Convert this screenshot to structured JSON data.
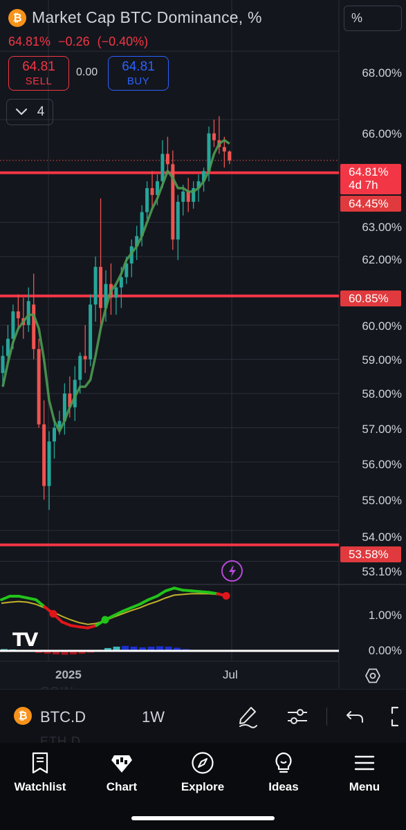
{
  "header": {
    "coin_glyph": "₿",
    "title": "Market Cap BTC Dominance, %",
    "last": "64.81%",
    "change": "−0.26",
    "change_pct": "(−0.40%)",
    "unit_box": "%"
  },
  "trade": {
    "sell_price": "64.81",
    "sell_label": "SELL",
    "spread": "0.00",
    "buy_price": "64.81",
    "buy_label": "BUY"
  },
  "indicators_toggle": {
    "count": "4"
  },
  "price_axis": {
    "labels": [
      "68.00%",
      "66.00%",
      "63.00%",
      "62.00%",
      "60.00%",
      "59.00%",
      "58.00%",
      "57.00%",
      "56.00%",
      "55.00%",
      "54.00%",
      "53.10%"
    ],
    "current_price": "64.81%",
    "countdown": "4d 7h",
    "line_tags": [
      "64.45%",
      "60.85%",
      "53.58%"
    ]
  },
  "indicator_axis": {
    "labels": [
      "1.00%",
      "0.00%"
    ]
  },
  "time_axis": {
    "labels": [
      "2025",
      "Jul"
    ]
  },
  "colors": {
    "up": "#26a69a",
    "down": "#ef5350",
    "ma_line": "#4c9a52",
    "horizontal_line": "#f23645",
    "sell": "#f23645",
    "buy": "#2962ff",
    "indicator_fast": "#22c41a",
    "indicator_slow": "#c2b32b"
  },
  "icons": {
    "lightning": "lightning-icon",
    "settings": "hexagon-settings-icon",
    "draw": "pen-icon",
    "indicators": "sliders-icon",
    "undo": "undo-icon",
    "fullscreen": "fullscreen-icon"
  },
  "toolbar": {
    "symbol": "BTC.D",
    "interval": "1W",
    "ghost_above": "COIN",
    "ghost_below": "ETH.D"
  },
  "nav": {
    "items": [
      {
        "label": "Watchlist",
        "icon": "bookmark-list-icon"
      },
      {
        "label": "Chart",
        "icon": "chart-icon"
      },
      {
        "label": "Explore",
        "icon": "compass-icon"
      },
      {
        "label": "Ideas",
        "icon": "lightbulb-icon"
      },
      {
        "label": "Menu",
        "icon": "hamburger-icon"
      }
    ]
  },
  "tv_logo": "TV",
  "chart_data": [
    {
      "type": "candlestick",
      "title": "Market Cap BTC Dominance, %",
      "interval": "1W",
      "ylim": [
        52.9,
        68.6
      ],
      "horizontal_lines": [
        64.45,
        60.85,
        53.58
      ],
      "last_price": 64.81,
      "ohlc": [
        [
          58.6,
          59.4,
          58.2,
          59.1
        ],
        [
          59.1,
          60.0,
          58.9,
          59.6
        ],
        [
          59.6,
          60.6,
          59.3,
          60.4
        ],
        [
          60.4,
          60.9,
          59.9,
          60.2
        ],
        [
          60.2,
          60.8,
          59.6,
          60.0
        ],
        [
          60.0,
          61.1,
          59.8,
          60.7
        ],
        [
          60.6,
          61.5,
          59.0,
          59.3
        ],
        [
          59.3,
          59.6,
          57.0,
          57.1
        ],
        [
          57.1,
          57.8,
          54.9,
          55.3
        ],
        [
          55.3,
          56.9,
          54.6,
          56.6
        ],
        [
          56.6,
          57.3,
          56.1,
          57.0
        ],
        [
          57.0,
          57.5,
          56.8,
          57.2
        ],
        [
          57.2,
          58.3,
          56.8,
          58.0
        ],
        [
          58.0,
          58.5,
          57.3,
          57.6
        ],
        [
          57.6,
          58.8,
          57.2,
          58.4
        ],
        [
          58.4,
          59.2,
          58.0,
          59.1
        ],
        [
          59.1,
          60.0,
          58.6,
          59.0
        ],
        [
          59.0,
          60.9,
          58.8,
          60.6
        ],
        [
          60.6,
          62.0,
          60.1,
          61.7
        ],
        [
          61.7,
          63.7,
          59.9,
          60.5
        ],
        [
          60.5,
          61.6,
          60.1,
          61.2
        ],
        [
          61.2,
          61.8,
          60.3,
          60.8
        ],
        [
          60.8,
          61.2,
          60.3,
          61.1
        ],
        [
          61.1,
          61.7,
          60.5,
          61.4
        ],
        [
          61.4,
          62.0,
          61.2,
          61.8
        ],
        [
          61.8,
          62.5,
          61.4,
          62.3
        ],
        [
          62.3,
          62.9,
          61.9,
          62.6
        ],
        [
          62.6,
          63.5,
          62.3,
          63.3
        ],
        [
          63.3,
          64.2,
          63.1,
          64.0
        ],
        [
          64.0,
          64.5,
          63.4,
          63.8
        ],
        [
          63.8,
          64.4,
          63.5,
          64.2
        ],
        [
          64.2,
          65.4,
          64.0,
          65.0
        ],
        [
          65.0,
          65.5,
          64.5,
          64.7
        ],
        [
          64.7,
          65.1,
          62.2,
          62.5
        ],
        [
          62.5,
          63.8,
          61.9,
          63.6
        ],
        [
          63.6,
          64.1,
          63.2,
          63.9
        ],
        [
          63.9,
          64.3,
          63.3,
          63.6
        ],
        [
          63.6,
          64.2,
          63.4,
          64.0
        ],
        [
          64.0,
          64.4,
          63.6,
          64.2
        ],
        [
          64.2,
          64.6,
          63.9,
          64.5
        ],
        [
          64.5,
          65.8,
          64.2,
          65.6
        ],
        [
          65.6,
          66.0,
          65.2,
          65.4
        ],
        [
          65.4,
          66.1,
          65.0,
          65.2
        ],
        [
          65.2,
          65.5,
          64.6,
          65.07
        ],
        [
          65.07,
          65.1,
          64.7,
          64.81
        ]
      ],
      "moving_average": [
        58.2,
        58.9,
        59.5,
        59.9,
        60.1,
        60.3,
        60.3,
        59.9,
        59.0,
        57.8,
        57.2,
        56.9,
        57.2,
        57.6,
        57.9,
        58.2,
        58.2,
        58.4,
        59.1,
        59.9,
        60.5,
        61.0,
        61.2,
        61.5,
        61.9,
        62.1,
        62.3,
        62.6,
        63.0,
        63.4,
        63.7,
        64.1,
        64.5,
        64.3,
        64.0,
        64.0,
        63.9,
        63.9,
        64.0,
        64.2,
        64.5,
        65.0,
        65.3,
        65.4,
        65.3
      ]
    },
    {
      "type": "line",
      "title": "",
      "ylim": [
        0.0,
        2.0
      ],
      "series": [
        {
          "values": [
            1.45,
            1.55,
            1.55,
            1.5,
            1.45,
            1.25,
            1.05,
            0.82,
            0.72,
            0.68,
            0.65,
            0.72,
            0.88,
            1.0,
            1.12,
            1.22,
            1.32,
            1.45,
            1.55,
            1.7,
            1.78,
            1.72,
            1.7,
            1.68,
            1.66,
            1.62,
            1.56
          ]
        },
        {
          "values": [
            1.35,
            1.38,
            1.4,
            1.38,
            1.32,
            1.22,
            1.1,
            0.98,
            0.88,
            0.8,
            0.75,
            0.78,
            0.86,
            0.96,
            1.05,
            1.14,
            1.22,
            1.32,
            1.4,
            1.5,
            1.58,
            1.6,
            1.62,
            1.62,
            1.62,
            1.6,
            1.58
          ]
        }
      ],
      "histogram": [
        0.05,
        0.04,
        0.03,
        -0.03,
        -0.06,
        -0.08,
        -0.1,
        -0.11,
        -0.1,
        -0.08,
        -0.05,
        0.03,
        0.08,
        0.12,
        0.14,
        0.12,
        0.1,
        0.12,
        0.13,
        0.12,
        0.09,
        0.05,
        0.03,
        0.02,
        -0.01,
        -0.02,
        -0.03
      ]
    }
  ]
}
